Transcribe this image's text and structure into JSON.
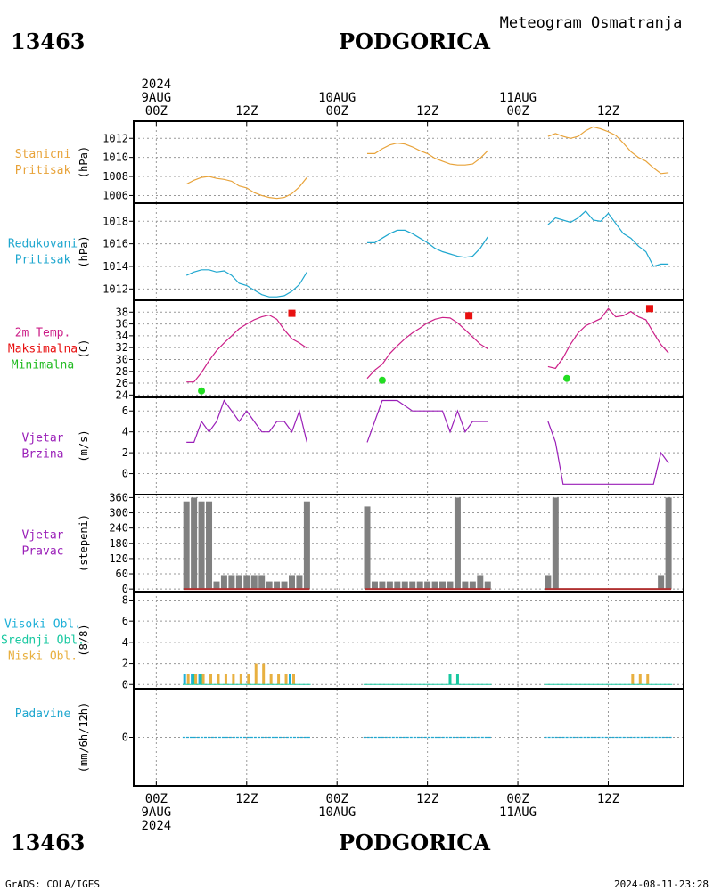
{
  "header": {
    "station_id": "13463",
    "station_name": "PODGORICA",
    "product": "Meteogram Osmatranja"
  },
  "footer": {
    "credit": "GrADS: COLA/IGES",
    "timestamp": "2024-08-11-23:28"
  },
  "colors": {
    "pressure_station": "#e8a33a",
    "pressure_reduced": "#1fa7cf",
    "temperature": "#cc1f88",
    "tmax": "#e81010",
    "tmin": "#22dd22",
    "wind": "#9a1fb8",
    "wind_dir_bar": "#808080",
    "wind_dir_base": "#b03030",
    "cloud_high": "#1fb0d8",
    "cloud_mid": "#18c8a0",
    "cloud_low": "#e8b040",
    "precip": "#1fa7cf",
    "label_station": "#e8a33a",
    "label_reduced": "#1fa7cf",
    "label_temp": "#cc1f88",
    "label_max": "#e81010",
    "label_min": "#22bb22",
    "label_wind": "#9a1fb8",
    "label_high": "#1fb0d8",
    "label_mid": "#18c8a0",
    "label_low": "#e8b040",
    "label_precip": "#1fa7cf"
  },
  "time_axis": {
    "top_ticks": [
      {
        "hour": 0,
        "lines": [
          "2024",
          "9AUG",
          "00Z"
        ]
      },
      {
        "hour": 12,
        "lines": [
          "12Z"
        ]
      },
      {
        "hour": 24,
        "lines": [
          "10AUG",
          "00Z"
        ]
      },
      {
        "hour": 36,
        "lines": [
          "12Z"
        ]
      },
      {
        "hour": 48,
        "lines": [
          "11AUG",
          "00Z"
        ]
      },
      {
        "hour": 60,
        "lines": [
          "12Z"
        ]
      }
    ],
    "bottom_ticks": [
      {
        "hour": 0,
        "lines": [
          "00Z",
          "9AUG",
          "2024"
        ]
      },
      {
        "hour": 12,
        "lines": [
          "12Z"
        ]
      },
      {
        "hour": 24,
        "lines": [
          "00Z",
          "10AUG"
        ]
      },
      {
        "hour": 36,
        "lines": [
          "12Z"
        ]
      },
      {
        "hour": 48,
        "lines": [
          "00Z",
          "11AUG"
        ]
      },
      {
        "hour": 60,
        "lines": [
          "12Z"
        ]
      }
    ],
    "range_hours": [
      -3,
      70
    ]
  },
  "chart_data": [
    {
      "type": "line",
      "id": "station_pressure",
      "labels": [
        "Stanicni",
        "Pritisak"
      ],
      "ylabel": "(hPa)",
      "yticks": [
        1006,
        1008,
        1010,
        1012
      ],
      "ylim": [
        1005.2,
        1013.8
      ],
      "series": [
        {
          "x": [
            4,
            5,
            6,
            7,
            8,
            9,
            10,
            11,
            12,
            13,
            14,
            15,
            16,
            17,
            18,
            19,
            20
          ],
          "y": [
            1007.2,
            1007.6,
            1007.9,
            1008.0,
            1007.8,
            1007.7,
            1007.5,
            1007.0,
            1006.8,
            1006.3,
            1006.0,
            1005.8,
            1005.7,
            1005.8,
            1006.2,
            1006.9,
            1007.9
          ]
        },
        {
          "x": [
            28,
            29,
            30,
            31,
            32,
            33,
            34,
            35,
            36,
            37,
            38,
            39,
            40,
            41,
            42,
            43,
            44
          ],
          "y": [
            1010.4,
            1010.4,
            1010.9,
            1011.3,
            1011.5,
            1011.4,
            1011.1,
            1010.7,
            1010.4,
            1009.9,
            1009.6,
            1009.3,
            1009.2,
            1009.2,
            1009.3,
            1009.9,
            1010.7
          ]
        },
        {
          "x": [
            52,
            53,
            54,
            55,
            56,
            57,
            58,
            59,
            60,
            61,
            62,
            63,
            64,
            65,
            66,
            67,
            68
          ],
          "y": [
            1012.2,
            1012.5,
            1012.2,
            1012.0,
            1012.2,
            1012.8,
            1013.2,
            1013.0,
            1012.7,
            1012.3,
            1011.5,
            1010.6,
            1010.0,
            1009.6,
            1008.9,
            1008.3,
            1008.4
          ]
        }
      ]
    },
    {
      "type": "line",
      "id": "reduced_pressure",
      "labels": [
        "Redukovani",
        "Pritisak"
      ],
      "ylabel": "(hPa)",
      "yticks": [
        1012,
        1014,
        1016,
        1018
      ],
      "ylim": [
        1011.0,
        1019.6
      ],
      "series": [
        {
          "x": [
            4,
            5,
            6,
            7,
            8,
            9,
            10,
            11,
            12,
            13,
            14,
            15,
            16,
            17,
            18,
            19,
            20
          ],
          "y": [
            1013.2,
            1013.5,
            1013.7,
            1013.7,
            1013.5,
            1013.6,
            1013.2,
            1012.5,
            1012.3,
            1011.9,
            1011.5,
            1011.3,
            1011.3,
            1011.4,
            1011.8,
            1012.4,
            1013.5
          ]
        },
        {
          "x": [
            28,
            29,
            30,
            31,
            32,
            33,
            34,
            35,
            36,
            37,
            38,
            39,
            40,
            41,
            42,
            43,
            44
          ],
          "y": [
            1016.1,
            1016.1,
            1016.5,
            1016.9,
            1017.2,
            1017.2,
            1016.9,
            1016.5,
            1016.1,
            1015.6,
            1015.3,
            1015.1,
            1014.9,
            1014.8,
            1014.9,
            1015.6,
            1016.6
          ]
        },
        {
          "x": [
            52,
            53,
            54,
            55,
            56,
            57,
            58,
            59,
            60,
            61,
            62,
            63,
            64,
            65,
            66,
            67,
            68
          ],
          "y": [
            1017.7,
            1018.3,
            1018.1,
            1017.9,
            1018.3,
            1018.9,
            1018.1,
            1018.0,
            1018.7,
            1017.8,
            1016.9,
            1016.5,
            1015.8,
            1015.3,
            1014.0,
            1014.2,
            1014.2
          ]
        }
      ]
    },
    {
      "type": "line",
      "id": "temperature_2m",
      "labels": [
        "2m Temp.",
        "Maksimalna",
        "Minimalna"
      ],
      "ylabel": "(C)",
      "yticks": [
        24,
        26,
        28,
        30,
        32,
        34,
        36,
        38
      ],
      "ylim": [
        23.6,
        40.0
      ],
      "series": [
        {
          "name": "2m Temp.",
          "x": [
            4,
            5,
            6,
            7,
            8,
            9,
            10,
            11,
            12,
            13,
            14,
            15,
            16,
            17,
            18,
            19,
            20
          ],
          "y": [
            26.2,
            26.2,
            27.8,
            29.8,
            31.5,
            32.8,
            34.0,
            35.2,
            36.0,
            36.7,
            37.2,
            37.5,
            36.8,
            35.0,
            33.5,
            32.8,
            31.9
          ]
        },
        {
          "name": "2m Temp.",
          "x": [
            28,
            29,
            30,
            31,
            32,
            33,
            34,
            35,
            36,
            37,
            38,
            39,
            40,
            41,
            42,
            43,
            44
          ],
          "y": [
            26.8,
            28.2,
            29.2,
            31.0,
            32.3,
            33.5,
            34.5,
            35.3,
            36.2,
            36.8,
            37.1,
            37.0,
            36.2,
            35.0,
            33.8,
            32.6,
            31.8
          ]
        },
        {
          "name": "2m Temp.",
          "x": [
            52,
            53,
            54,
            55,
            56,
            57,
            58,
            59,
            60,
            61,
            62,
            63,
            64,
            65,
            66,
            67,
            68
          ],
          "y": [
            28.8,
            28.5,
            30.3,
            32.6,
            34.5,
            35.7,
            36.3,
            36.9,
            38.6,
            37.2,
            37.4,
            38.1,
            37.2,
            36.7,
            34.5,
            32.5,
            31.1
          ]
        }
      ],
      "tmax": [
        {
          "x": 18,
          "y": 37.8
        },
        {
          "x": 41.5,
          "y": 37.4
        },
        {
          "x": 65.5,
          "y": 38.6
        }
      ],
      "tmin": [
        {
          "x": 6,
          "y": 24.7
        },
        {
          "x": 30,
          "y": 26.5
        },
        {
          "x": 54.5,
          "y": 26.8
        }
      ]
    },
    {
      "type": "line",
      "id": "wind_speed",
      "labels": [
        "Vjetar",
        "Brzina"
      ],
      "ylabel": "(m/s)",
      "yticks": [
        0,
        2,
        4,
        6
      ],
      "ylim": [
        -2.0,
        7.3
      ],
      "series": [
        {
          "x": [
            4,
            5,
            6,
            7,
            8,
            9,
            10,
            11,
            12,
            13,
            14,
            15,
            16,
            17,
            18,
            19,
            20
          ],
          "y": [
            3,
            3,
            5,
            4,
            5,
            7,
            6,
            5,
            6,
            5,
            4,
            4,
            5,
            5,
            4,
            6,
            3
          ]
        },
        {
          "x": [
            28,
            30,
            32,
            34,
            36,
            38,
            39,
            40,
            41,
            42,
            43,
            44
          ],
          "y": [
            3,
            7,
            7,
            6,
            6,
            6,
            4,
            6,
            4,
            5,
            5,
            5
          ]
        },
        {
          "x": [
            52,
            53,
            54,
            55,
            56,
            57,
            58,
            59,
            60,
            61,
            62,
            63,
            64,
            65,
            66,
            67,
            68
          ],
          "y": [
            5,
            3,
            -1,
            -1,
            -1,
            -1,
            -1,
            -1,
            -1,
            -1,
            -1,
            -1,
            -1,
            -1,
            -1,
            2,
            1
          ]
        }
      ]
    },
    {
      "type": "bar",
      "id": "wind_direction",
      "labels": [
        "Vjetar",
        "Pravac"
      ],
      "ylabel": "(stepeni)",
      "yticks": [
        0,
        60,
        120,
        180,
        240,
        300,
        360
      ],
      "ylim": [
        -10,
        372
      ],
      "x": [
        4,
        5,
        6,
        7,
        8,
        9,
        10,
        11,
        12,
        13,
        14,
        15,
        16,
        17,
        18,
        19,
        20,
        28,
        29,
        30,
        31,
        32,
        33,
        34,
        35,
        36,
        37,
        38,
        39,
        40,
        41,
        42,
        43,
        44,
        52,
        53,
        54,
        55,
        56,
        57,
        58,
        59,
        60,
        61,
        62,
        63,
        64,
        65,
        66,
        67,
        68
      ],
      "values": [
        345,
        360,
        345,
        345,
        30,
        55,
        55,
        55,
        55,
        55,
        55,
        30,
        30,
        30,
        55,
        55,
        345,
        325,
        30,
        30,
        30,
        30,
        30,
        30,
        30,
        30,
        30,
        30,
        30,
        360,
        30,
        30,
        55,
        30,
        55,
        360,
        0,
        0,
        0,
        0,
        0,
        0,
        0,
        0,
        0,
        0,
        0,
        0,
        0,
        55,
        360
      ]
    },
    {
      "type": "bar",
      "id": "clouds",
      "labels": [
        "Visoki Obl.",
        "Srednji Obl.",
        "Niski Obl."
      ],
      "ylabel": "(8/8)",
      "yticks": [
        0,
        2,
        4,
        6,
        8
      ],
      "ylim": [
        -0.4,
        8.8
      ],
      "series": [
        {
          "name": "Visoki Obl.",
          "x": [
            4,
            5,
            6,
            18
          ],
          "values": [
            1,
            1,
            1,
            1
          ]
        },
        {
          "name": "Srednji Obl.",
          "x": [
            5,
            6,
            39,
            40
          ],
          "values": [
            1,
            1,
            1,
            1
          ]
        },
        {
          "name": "Niski Obl.",
          "x": [
            4,
            5,
            6,
            7,
            8,
            9,
            10,
            11,
            12,
            13,
            14,
            15,
            16,
            17,
            18,
            63,
            64,
            65
          ],
          "values": [
            1,
            1,
            1,
            1,
            1,
            1,
            1,
            1,
            1,
            2,
            2,
            1,
            1,
            1,
            1,
            1,
            1,
            1
          ]
        }
      ]
    },
    {
      "type": "line",
      "id": "precipitation",
      "labels": [
        "Padavine"
      ],
      "ylabel": "(mm/6h/12h)",
      "yticks": [
        0
      ],
      "ylim": [
        -5,
        5
      ],
      "series": [
        {
          "x": [
            3.5,
            20.5
          ],
          "y": [
            0,
            0
          ]
        },
        {
          "x": [
            27.5,
            44.5
          ],
          "y": [
            0,
            0
          ]
        },
        {
          "x": [
            51.5,
            68.5
          ],
          "y": [
            0,
            0
          ]
        }
      ]
    }
  ]
}
